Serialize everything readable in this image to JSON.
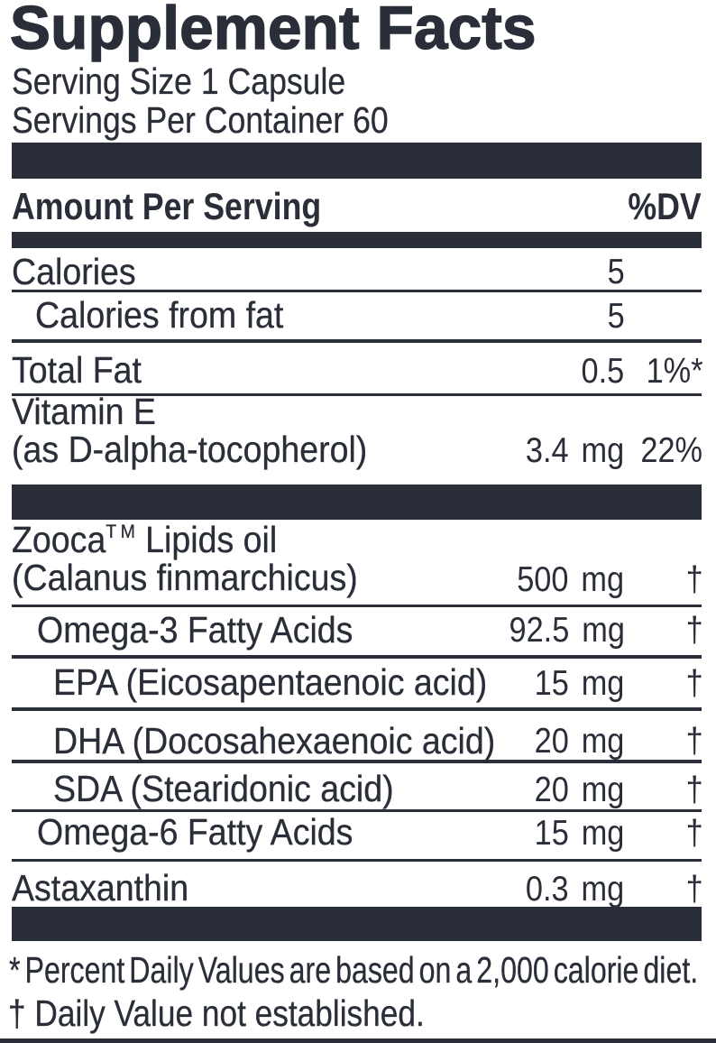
{
  "title": "Supplement Facts",
  "serving_info": {
    "serving_size": "Serving Size 1 Capsule",
    "servings_per_container": "Servings Per Container 60"
  },
  "column_header": {
    "amount": "Amount Per Serving",
    "dv": "%DV"
  },
  "rows": [
    {
      "label": "Calories",
      "amount": "5",
      "dv": ""
    },
    {
      "label": "Calories from fat",
      "amount": "5",
      "dv": ""
    },
    {
      "label": "Total Fat",
      "amount": "0.5",
      "dv": "1%*"
    },
    {
      "label": "Vitamin E",
      "label2": "(as D-alpha-tocopherol)",
      "amount": "3.4 mg",
      "dv": "22%"
    },
    {
      "brand": "Zooca",
      "trademark": "TM",
      "label": " Lipids oil",
      "label2": "(Calanus finmarchicus)",
      "amount": "500 mg",
      "dv": "†"
    },
    {
      "label": "Omega-3 Fatty Acids",
      "amount": "92.5 mg",
      "dv": "†"
    },
    {
      "label": "EPA (Eicosapentaenoic acid)",
      "amount": "15 mg",
      "dv": "†"
    },
    {
      "label": "DHA (Docosahexaenoic acid)",
      "amount": "20 mg",
      "dv": "†"
    },
    {
      "label": "SDA (Stearidonic acid)",
      "amount": "20 mg",
      "dv": "†"
    },
    {
      "label": "Omega-6 Fatty Acids",
      "amount": "15 mg",
      "dv": "†"
    },
    {
      "label": "Astaxanthin",
      "amount": "0.3 mg",
      "dv": "†"
    }
  ],
  "footnotes": {
    "dv_note": "* Percent Daily Values are based on a 2,000 calorie diet.",
    "dagger_note": "† Daily Value not established."
  },
  "colors": {
    "ink": "#2a2e38",
    "background": "#ffffff"
  }
}
